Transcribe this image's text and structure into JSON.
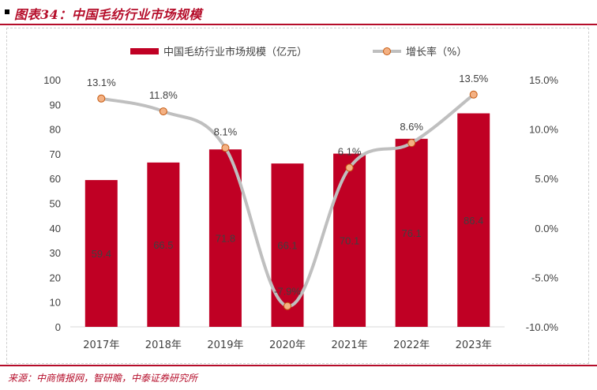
{
  "header": {
    "title": "图表34：中国毛纺行业市场规模"
  },
  "footer": {
    "source": "来源：中商情报网，智研瞻，中泰证券研究所"
  },
  "colors": {
    "accent": "#b50d2a",
    "bar": "#c00024",
    "line": "#bfbfbf",
    "marker_fill": "#f4b183",
    "marker_stroke": "#c55a11"
  },
  "chart_data": {
    "type": "bar",
    "categories": [
      "2017年",
      "2018年",
      "2019年",
      "2020年",
      "2021年",
      "2022年",
      "2023年"
    ],
    "series": [
      {
        "name": "中国毛纺行业市场规模（亿元）",
        "type": "bar",
        "axis": "left",
        "values": [
          59.4,
          66.5,
          71.8,
          66.1,
          70.1,
          76.1,
          86.4
        ],
        "labels": [
          "59.4",
          "66.5",
          "71.8",
          "66.1",
          "70.1",
          "76.1",
          "86.4"
        ]
      },
      {
        "name": "增长率（%）",
        "type": "line",
        "axis": "right",
        "values": [
          13.1,
          11.8,
          8.1,
          -7.9,
          6.1,
          8.6,
          13.5
        ],
        "labels": [
          "13.1%",
          "11.8%",
          "8.1%",
          "-7.9%",
          "6.1%",
          "8.6%",
          "13.5%"
        ]
      }
    ],
    "y_left": {
      "ylim": [
        0,
        100
      ],
      "ticks": [
        "0",
        "10",
        "20",
        "30",
        "40",
        "50",
        "60",
        "70",
        "80",
        "90",
        "100"
      ]
    },
    "y_right": {
      "ylim": [
        -10,
        15
      ],
      "ticks": [
        "-10.0%",
        "-5.0%",
        "0.0%",
        "5.0%",
        "10.0%",
        "15.0%"
      ]
    },
    "grid": false,
    "legend": "top"
  }
}
